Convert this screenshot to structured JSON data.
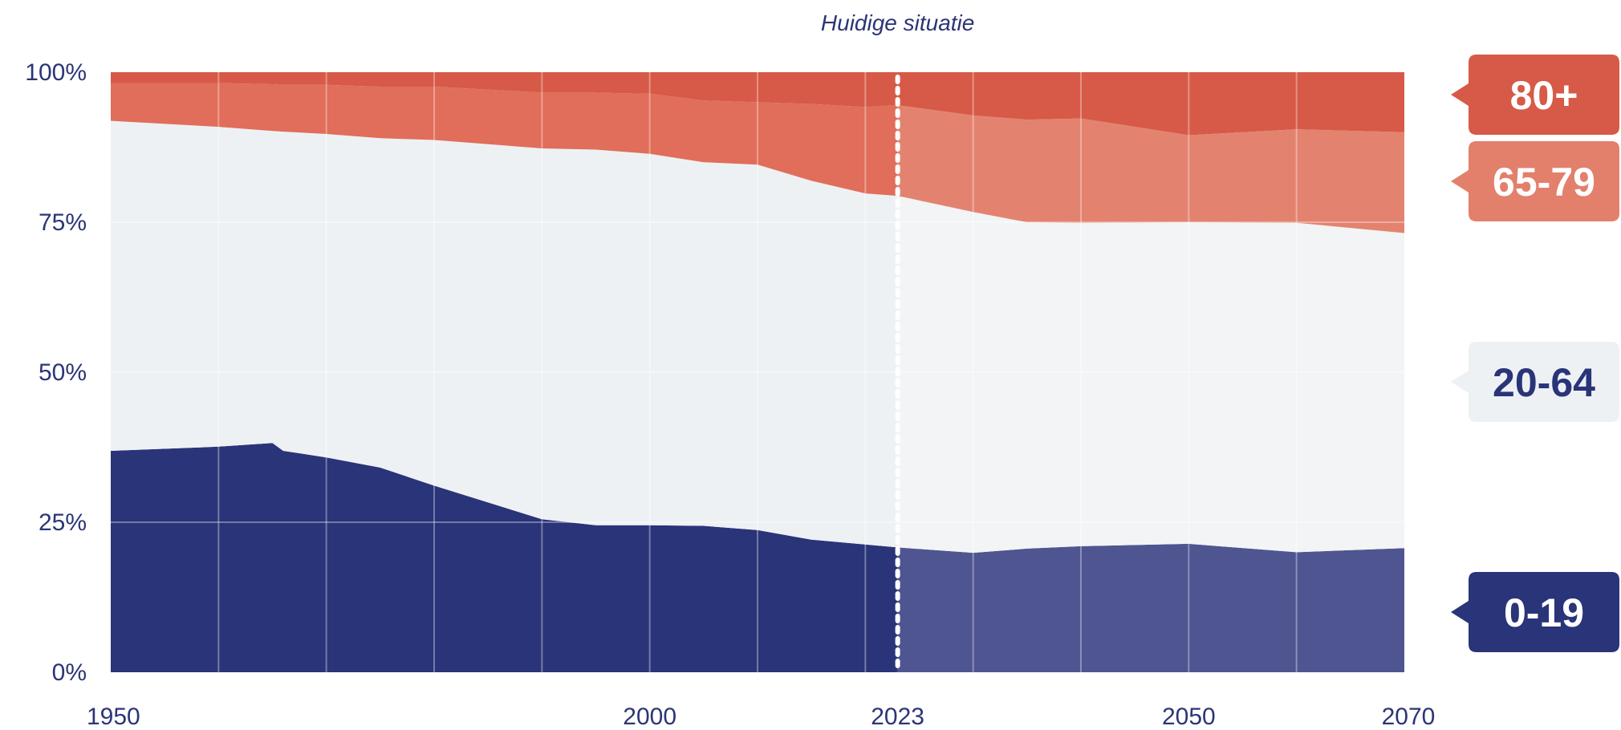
{
  "chart_data": {
    "type": "area",
    "annotation": {
      "text": "Huidige situatie",
      "x": 2023
    },
    "xlim": [
      1950,
      2070
    ],
    "ylim": [
      0,
      100
    ],
    "x_ticks": [
      {
        "value": 1950,
        "label": "1950"
      },
      {
        "value": 2000,
        "label": "2000"
      },
      {
        "value": 2023,
        "label": "2023"
      },
      {
        "value": 2050,
        "label": "2050"
      },
      {
        "value": 2070,
        "label": "2070"
      }
    ],
    "y_ticks": [
      {
        "value": 0,
        "label": "0%"
      },
      {
        "value": 25,
        "label": "25%"
      },
      {
        "value": 50,
        "label": "50%"
      },
      {
        "value": 75,
        "label": "75%"
      },
      {
        "value": 100,
        "label": "100%"
      }
    ],
    "stacked": true,
    "x": [
      1950,
      1960,
      1965,
      1966,
      1970,
      1975,
      1980,
      1990,
      1995,
      2000,
      2005,
      2010,
      2015,
      2020,
      2023,
      2030,
      2035,
      2040,
      2050,
      2060,
      2070
    ],
    "series": [
      {
        "name": "0-19",
        "color": "#2a3479",
        "projected_color": "#4f5591",
        "values": [
          36.9,
          37.6,
          38.2,
          36.9,
          35.8,
          34.1,
          31.1,
          25.5,
          24.5,
          24.5,
          24.4,
          23.7,
          22.1,
          21.3,
          20.8,
          19.9,
          20.6,
          21.0,
          21.4,
          20.0,
          20.7
        ]
      },
      {
        "name": "20-64",
        "color": "#eef1f4",
        "projected_color": "#f2f4f6",
        "values": [
          55.0,
          53.3,
          52.0,
          53.2,
          53.9,
          54.9,
          57.6,
          61.8,
          62.6,
          61.9,
          60.6,
          60.9,
          59.8,
          58.5,
          58.6,
          56.8,
          54.4,
          53.9,
          53.6,
          54.9,
          52.5
        ]
      },
      {
        "name": "65-79",
        "color": "#e06e5a",
        "projected_color": "#e3836f",
        "values": [
          6.3,
          7.3,
          7.8,
          7.8,
          8.2,
          8.6,
          8.9,
          9.3,
          9.5,
          10.0,
          10.3,
          10.4,
          12.8,
          14.4,
          15.1,
          16.1,
          17.1,
          17.4,
          14.5,
          15.6,
          16.8
        ]
      },
      {
        "name": "80+",
        "color": "#d65a47",
        "projected_color": "#d65a47",
        "values": [
          1.8,
          1.8,
          2.0,
          2.1,
          2.1,
          2.4,
          2.4,
          3.4,
          3.4,
          3.6,
          4.7,
          5.0,
          5.3,
          5.8,
          5.5,
          7.2,
          7.9,
          7.7,
          10.5,
          9.5,
          10.0
        ]
      }
    ],
    "grid": true,
    "legend": {
      "position": "right",
      "style": "tag-labels"
    }
  }
}
